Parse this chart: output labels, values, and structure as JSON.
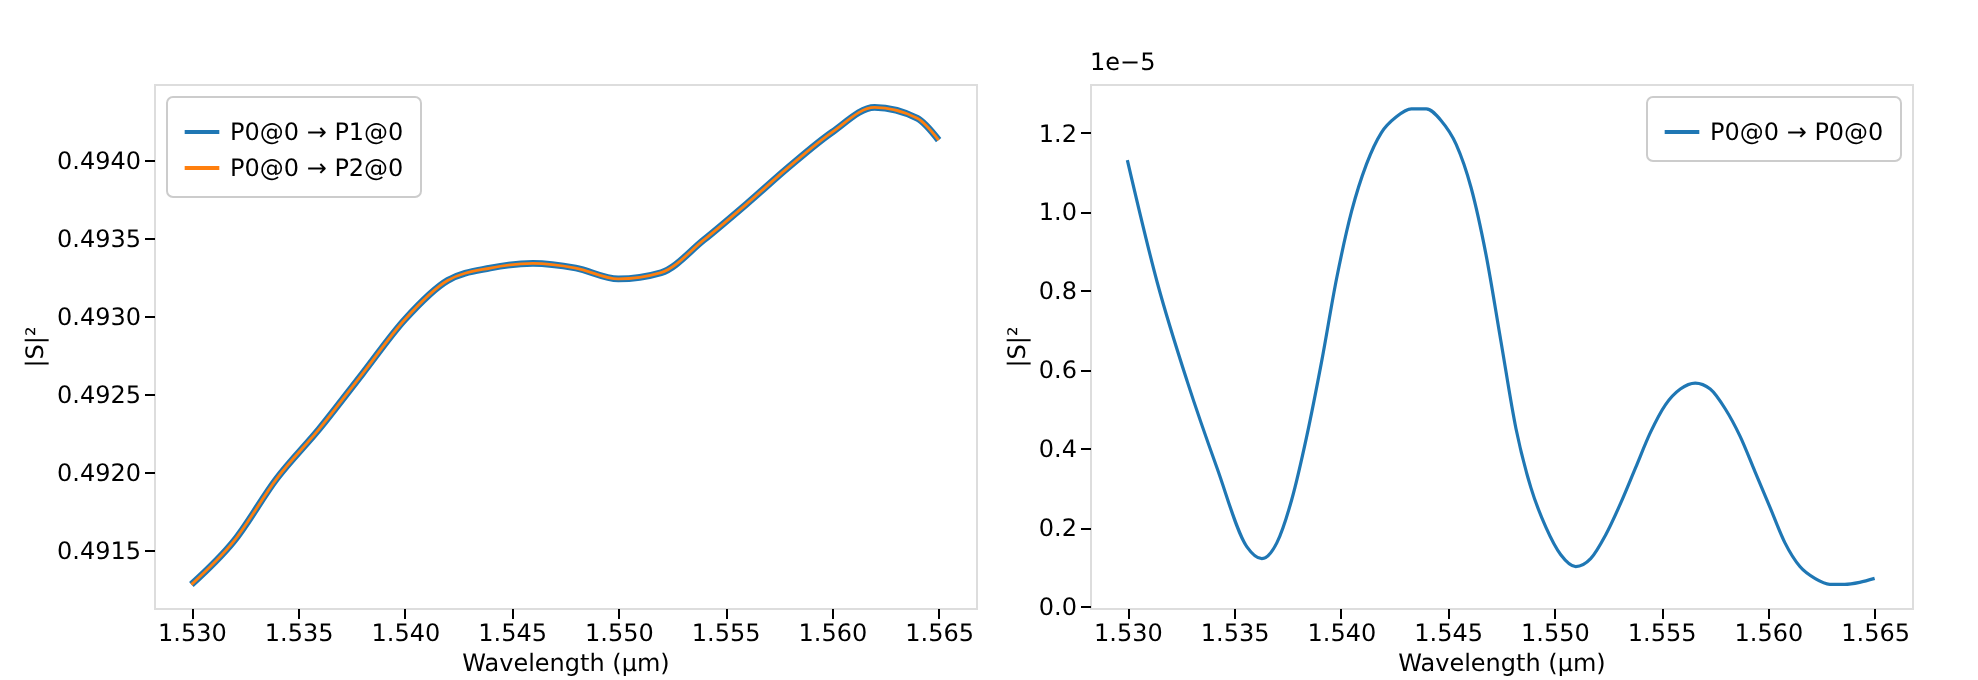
{
  "chart_data": [
    {
      "type": "line",
      "xlabel": "Wavelength (µm)",
      "ylabel": "|S|²",
      "x": [
        1.53,
        1.532,
        1.534,
        1.536,
        1.538,
        1.54,
        1.542,
        1.544,
        1.546,
        1.548,
        1.55,
        1.552,
        1.554,
        1.556,
        1.558,
        1.56,
        1.562,
        1.564,
        1.565
      ],
      "series": [
        {
          "name": "P0@0 → P1@0",
          "color": "#1f77b4",
          "values": [
            0.49128,
            0.49156,
            0.49196,
            0.49228,
            0.49263,
            0.49298,
            0.49323,
            0.49331,
            0.49334,
            0.49331,
            0.49324,
            0.49328,
            0.49349,
            0.49372,
            0.49396,
            0.49418,
            0.49434,
            0.49427,
            0.49413
          ]
        },
        {
          "name": "P0@0 → P2@0",
          "color": "#ff7f0e",
          "values": [
            0.49128,
            0.49156,
            0.49196,
            0.49228,
            0.49263,
            0.49298,
            0.49323,
            0.49331,
            0.49334,
            0.49331,
            0.49324,
            0.49328,
            0.49349,
            0.49372,
            0.49396,
            0.49418,
            0.49434,
            0.49427,
            0.49413
          ]
        }
      ],
      "xlim": [
        1.52825,
        1.56675
      ],
      "xticks": [
        {
          "value": 1.53,
          "label": "1.530"
        },
        1.535,
        {
          "value": 1.54,
          "label": "1.540"
        },
        1.545,
        {
          "value": 1.55,
          "label": "1.550"
        },
        1.555,
        {
          "value": 1.56,
          "label": "1.560"
        },
        1.565
      ],
      "ylim": [
        0.49113,
        0.49449
      ],
      "yticks": [
        0.4915,
        {
          "value": 0.492,
          "label": "0.4920"
        },
        0.4925,
        {
          "value": 0.493,
          "label": "0.4930"
        },
        0.4935,
        {
          "value": 0.494,
          "label": "0.4940"
        }
      ],
      "legend": "top left",
      "grid": false,
      "marker": "none",
      "line_style": "solid"
    },
    {
      "type": "line",
      "xlabel": "Wavelength (µm)",
      "ylabel": "|S|²",
      "annotations": [
        "1e−5"
      ],
      "x": [
        1.53,
        1.5314,
        1.5328,
        1.5342,
        1.5356,
        1.5363,
        1.537,
        1.5377,
        1.5384,
        1.5391,
        1.5398,
        1.5405,
        1.5412,
        1.5419,
        1.5426,
        1.5433,
        1.544,
        1.5447,
        1.5454,
        1.5461,
        1.5468,
        1.5475,
        1.5482,
        1.5489,
        1.5496,
        1.5503,
        1.551,
        1.5517,
        1.5524,
        1.5531,
        1.5538,
        1.5545,
        1.5552,
        1.5559,
        1.5566,
        1.5573,
        1.558,
        1.5587,
        1.5594,
        1.5601,
        1.5608,
        1.5615,
        1.5622,
        1.5629,
        1.5636,
        1.5643,
        1.565
      ],
      "series": [
        {
          "name": "P0@0 → P0@0",
          "color": "#1f77b4",
          "values": [
            1.13,
            0.82,
            0.57,
            0.35,
            0.15,
            0.12,
            0.16,
            0.27,
            0.43,
            0.62,
            0.83,
            1.0,
            1.12,
            1.2,
            1.24,
            1.26,
            1.26,
            1.23,
            1.17,
            1.06,
            0.89,
            0.67,
            0.45,
            0.3,
            0.2,
            0.13,
            0.1,
            0.12,
            0.18,
            0.26,
            0.35,
            0.44,
            0.51,
            0.55,
            0.565,
            0.55,
            0.5,
            0.43,
            0.34,
            0.25,
            0.16,
            0.1,
            0.07,
            0.055,
            0.055,
            0.06,
            0.07
          ]
        }
      ],
      "xlim": [
        1.52825,
        1.56675
      ],
      "xticks": [
        {
          "value": 1.53,
          "label": "1.530"
        },
        1.535,
        {
          "value": 1.54,
          "label": "1.540"
        },
        1.545,
        {
          "value": 1.55,
          "label": "1.550"
        },
        1.555,
        {
          "value": 1.56,
          "label": "1.560"
        },
        1.565
      ],
      "ylim": [
        -0.005,
        1.323
      ],
      "yticks": [
        {
          "value": 0,
          "label": "0.0"
        },
        0.2,
        0.4,
        0.6,
        0.8,
        {
          "value": 1,
          "label": "1.0"
        },
        1.2
      ],
      "legend": "top right",
      "grid": false,
      "marker": "none",
      "line_style": "solid"
    }
  ]
}
